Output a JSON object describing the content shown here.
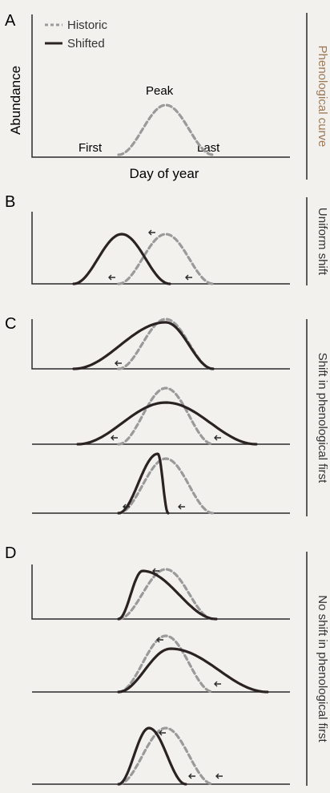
{
  "panels": {
    "A": {
      "letter": "A",
      "ylabel": "Abundance",
      "xlabel": "Day of year",
      "side_label": "Phenological curve",
      "annotations": {
        "first": "First",
        "peak": "Peak",
        "last": "Last"
      }
    },
    "B": {
      "letter": "B",
      "side_label": "Uniform shift"
    },
    "C": {
      "letter": "C",
      "side_label": "Shift in phenological first"
    },
    "D": {
      "letter": "D",
      "side_label": "No shift in phenological first"
    }
  },
  "legend": {
    "historic": "Historic",
    "shifted": "Shifted"
  },
  "colors": {
    "historic": "#9a9a9a",
    "shifted": "#2b2322",
    "axis": "#2b2b2b",
    "side_label": "#9a7a58"
  }
}
